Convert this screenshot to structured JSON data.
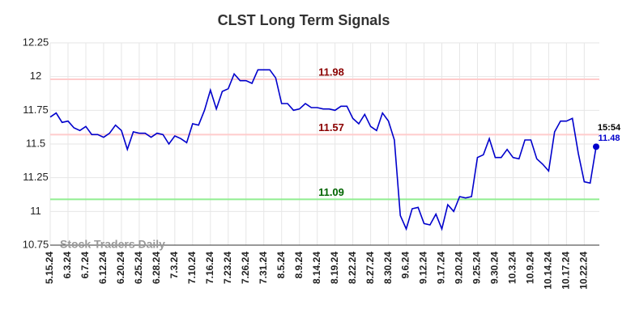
{
  "chart_data": {
    "type": "line",
    "title": "CLST Long Term Signals",
    "categories": [
      "5.15.24",
      null,
      null,
      "6.3.24",
      null,
      null,
      "6.7.24",
      null,
      null,
      "6.12.24",
      null,
      null,
      "6.20.24",
      null,
      null,
      "6.25.24",
      null,
      null,
      "6.28.24",
      null,
      null,
      "7.3.24",
      null,
      null,
      "7.10.24",
      null,
      null,
      "7.16.24",
      null,
      null,
      "7.23.24",
      null,
      null,
      "7.26.24",
      null,
      null,
      "7.31.24",
      null,
      null,
      "8.5.24",
      null,
      null,
      "8.9.24",
      null,
      null,
      "8.14.24",
      null,
      null,
      "8.19.24",
      null,
      null,
      "8.22.24",
      null,
      null,
      "8.27.24",
      null,
      null,
      "8.30.24",
      null,
      null,
      "9.6.24",
      null,
      null,
      "9.12.24",
      null,
      null,
      "9.17.24",
      null,
      null,
      "9.20.24",
      null,
      null,
      "9.25.24",
      null,
      null,
      "9.30.24",
      null,
      null,
      "10.3.24",
      null,
      null,
      "10.9.24",
      null,
      null,
      "10.14.24",
      null,
      null,
      "10.17.24",
      null,
      null,
      "10.22.24",
      null,
      null
    ],
    "values": [
      11.7,
      11.73,
      11.66,
      11.67,
      11.62,
      11.6,
      11.63,
      11.57,
      11.57,
      11.55,
      11.58,
      11.64,
      11.6,
      11.46,
      11.59,
      11.58,
      11.58,
      11.55,
      11.58,
      11.57,
      11.5,
      11.56,
      11.54,
      11.51,
      11.65,
      11.64,
      11.75,
      11.9,
      11.76,
      11.89,
      11.91,
      12.02,
      11.97,
      11.97,
      11.95,
      12.05,
      12.05,
      12.05,
      11.99,
      11.8,
      11.8,
      11.75,
      11.76,
      11.8,
      11.77,
      11.77,
      11.76,
      11.76,
      11.75,
      11.78,
      11.78,
      11.69,
      11.65,
      11.72,
      11.63,
      11.6,
      11.73,
      11.67,
      11.53,
      10.97,
      10.87,
      11.02,
      11.03,
      10.91,
      10.9,
      10.98,
      10.87,
      11.05,
      11.0,
      11.11,
      11.1,
      11.11,
      11.4,
      11.42,
      11.54,
      11.4,
      11.4,
      11.46,
      11.4,
      11.39,
      11.53,
      11.53,
      11.39,
      11.35,
      11.3,
      11.59,
      11.67,
      11.67,
      11.69,
      11.43,
      11.22,
      11.21,
      11.48
    ],
    "color": "#0000cc",
    "ylim": [
      10.75,
      12.25
    ],
    "yticks": [
      10.75,
      11,
      11.25,
      11.5,
      11.75,
      12,
      12.25
    ],
    "grid": true,
    "levels": [
      {
        "value": 11.98,
        "color": "#ffcccc",
        "label_color": "#8b0000"
      },
      {
        "value": 11.57,
        "color": "#ffcccc",
        "label_color": "#8b0000"
      },
      {
        "value": 11.09,
        "color": "#90ee90",
        "label_color": "#006400"
      }
    ],
    "last_time": "15:54",
    "watermark": "Stock Traders Daily"
  }
}
